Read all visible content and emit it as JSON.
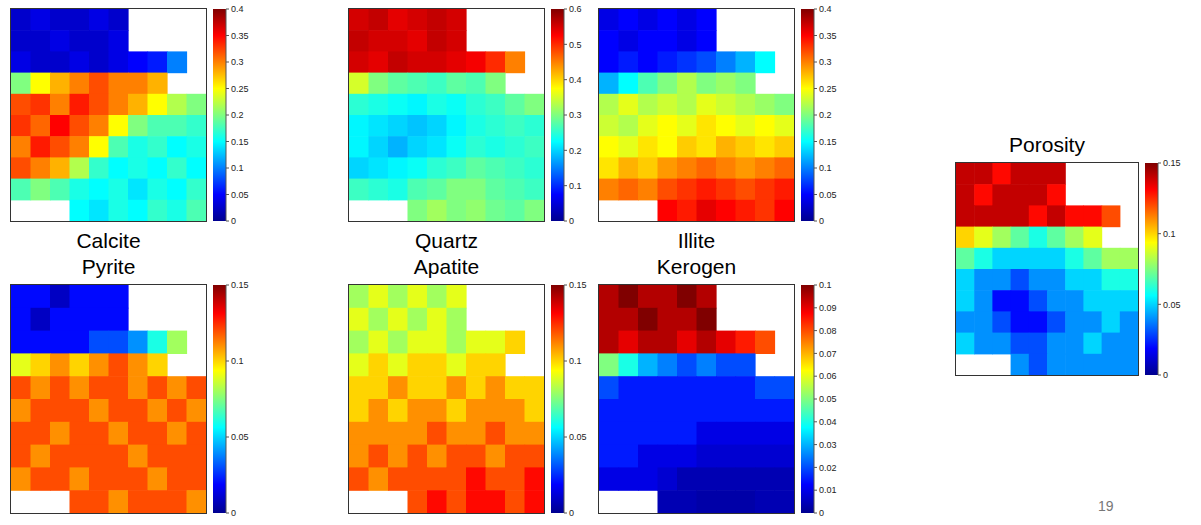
{
  "chart_data": [
    {
      "type": "heatmap",
      "title": "Calcite",
      "tick_labels": false,
      "colorbar_range": [
        0,
        0.4
      ],
      "colorbar_ticks": [
        0,
        0.05,
        0.1,
        0.15,
        0.2,
        0.25,
        0.3,
        0.35,
        0.4
      ],
      "cells": [
        [
          0.03,
          0.04,
          0.03,
          0.03,
          0.04,
          0.03,
          null,
          null,
          null,
          null
        ],
        [
          0.03,
          0.03,
          0.04,
          0.03,
          0.03,
          0.04,
          null,
          null,
          null,
          null
        ],
        [
          0.04,
          0.03,
          0.03,
          0.04,
          0.03,
          0.04,
          0.05,
          0.06,
          0.1,
          null
        ],
        [
          0.2,
          0.25,
          0.28,
          0.3,
          0.32,
          0.3,
          0.3,
          0.28,
          null,
          null
        ],
        [
          0.32,
          0.33,
          0.3,
          0.34,
          0.32,
          0.3,
          0.28,
          0.25,
          0.22,
          0.2
        ],
        [
          0.33,
          0.31,
          0.35,
          0.32,
          0.3,
          0.25,
          0.2,
          0.18,
          0.18,
          0.17
        ],
        [
          0.3,
          0.34,
          0.32,
          0.3,
          0.25,
          0.18,
          0.16,
          0.17,
          0.15,
          0.16
        ],
        [
          0.32,
          0.3,
          0.28,
          0.22,
          0.17,
          0.15,
          0.16,
          0.15,
          0.17,
          0.15
        ],
        [
          0.18,
          0.2,
          0.18,
          0.16,
          0.15,
          0.16,
          0.14,
          0.16,
          0.15,
          0.17
        ],
        [
          null,
          null,
          null,
          0.15,
          0.14,
          0.16,
          0.15,
          0.17,
          0.16,
          0.18
        ]
      ]
    },
    {
      "type": "heatmap",
      "title": "Quartz",
      "tick_labels": false,
      "colorbar_range": [
        0,
        0.6
      ],
      "colorbar_ticks": [
        0,
        0.1,
        0.2,
        0.3,
        0.4,
        0.5,
        0.6
      ],
      "cells": [
        [
          0.55,
          0.56,
          0.54,
          0.55,
          0.56,
          0.55,
          null,
          null,
          null,
          null
        ],
        [
          0.56,
          0.55,
          0.55,
          0.54,
          0.56,
          0.55,
          null,
          null,
          null,
          null
        ],
        [
          0.55,
          0.54,
          0.56,
          0.55,
          0.55,
          0.54,
          0.53,
          0.5,
          0.45,
          null
        ],
        [
          0.35,
          0.3,
          0.28,
          0.27,
          0.26,
          0.28,
          0.27,
          0.3,
          null,
          null
        ],
        [
          0.25,
          0.24,
          0.23,
          0.22,
          0.24,
          0.23,
          0.25,
          0.26,
          0.28,
          0.3
        ],
        [
          0.22,
          0.21,
          0.2,
          0.19,
          0.2,
          0.22,
          0.24,
          0.25,
          0.26,
          0.25
        ],
        [
          0.22,
          0.2,
          0.18,
          0.2,
          0.21,
          0.23,
          0.25,
          0.24,
          0.25,
          0.26
        ],
        [
          0.2,
          0.21,
          0.22,
          0.23,
          0.25,
          0.26,
          0.28,
          0.27,
          0.26,
          0.25
        ],
        [
          0.26,
          0.25,
          0.24,
          0.27,
          0.28,
          0.3,
          0.3,
          0.28,
          0.27,
          0.26
        ],
        [
          null,
          null,
          null,
          0.3,
          0.32,
          0.3,
          0.31,
          0.29,
          0.28,
          0.3
        ]
      ]
    },
    {
      "type": "heatmap",
      "title": "Illite",
      "tick_labels": false,
      "colorbar_range": [
        0,
        0.4
      ],
      "colorbar_ticks": [
        0,
        0.05,
        0.1,
        0.15,
        0.2,
        0.25,
        0.3,
        0.35,
        0.4
      ],
      "cells": [
        [
          0.04,
          0.05,
          0.04,
          0.05,
          0.04,
          0.05,
          null,
          null,
          null,
          null
        ],
        [
          0.05,
          0.04,
          0.05,
          0.05,
          0.04,
          0.05,
          null,
          null,
          null,
          null
        ],
        [
          0.05,
          0.06,
          0.05,
          0.06,
          0.07,
          0.08,
          0.1,
          0.12,
          0.15,
          null
        ],
        [
          0.12,
          0.15,
          0.18,
          0.2,
          0.22,
          0.2,
          0.21,
          0.2,
          null,
          null
        ],
        [
          0.22,
          0.24,
          0.22,
          0.23,
          0.22,
          0.24,
          0.23,
          0.22,
          0.21,
          0.2
        ],
        [
          0.23,
          0.22,
          0.24,
          0.25,
          0.24,
          0.26,
          0.25,
          0.24,
          0.25,
          0.24
        ],
        [
          0.25,
          0.24,
          0.26,
          0.25,
          0.27,
          0.26,
          0.28,
          0.27,
          0.26,
          0.27
        ],
        [
          0.26,
          0.28,
          0.27,
          0.29,
          0.3,
          0.31,
          0.3,
          0.29,
          0.3,
          0.31
        ],
        [
          0.3,
          0.31,
          0.3,
          0.32,
          0.33,
          0.34,
          0.33,
          0.32,
          0.33,
          0.34
        ],
        [
          null,
          null,
          null,
          0.35,
          0.34,
          0.36,
          0.35,
          0.34,
          0.33,
          0.35
        ]
      ]
    },
    {
      "type": "heatmap",
      "title": "Pyrite",
      "tick_labels": false,
      "colorbar_range": [
        0,
        0.15
      ],
      "colorbar_ticks": [
        0,
        0.05,
        0.1,
        0.15
      ],
      "cells": [
        [
          0.02,
          0.02,
          0.01,
          0.02,
          0.02,
          0.02,
          null,
          null,
          null,
          null
        ],
        [
          0.02,
          0.01,
          0.02,
          0.02,
          0.02,
          0.02,
          null,
          null,
          null,
          null
        ],
        [
          0.02,
          0.02,
          0.02,
          0.02,
          0.03,
          0.03,
          0.04,
          0.06,
          0.08,
          null
        ],
        [
          0.09,
          0.1,
          0.11,
          0.1,
          0.11,
          0.12,
          0.11,
          0.1,
          null,
          null
        ],
        [
          0.12,
          0.11,
          0.12,
          0.11,
          0.12,
          0.12,
          0.11,
          0.12,
          0.11,
          0.12
        ],
        [
          0.11,
          0.12,
          0.12,
          0.12,
          0.11,
          0.12,
          0.12,
          0.11,
          0.12,
          0.11
        ],
        [
          0.12,
          0.12,
          0.11,
          0.12,
          0.12,
          0.11,
          0.12,
          0.12,
          0.11,
          0.12
        ],
        [
          0.12,
          0.11,
          0.12,
          0.12,
          0.12,
          0.12,
          0.11,
          0.12,
          0.12,
          0.12
        ],
        [
          0.11,
          0.12,
          0.12,
          0.11,
          0.12,
          0.12,
          0.12,
          0.11,
          0.12,
          0.12
        ],
        [
          null,
          null,
          null,
          0.12,
          0.12,
          0.11,
          0.12,
          0.12,
          0.12,
          0.11
        ]
      ]
    },
    {
      "type": "heatmap",
      "title": "Apatite",
      "tick_labels": false,
      "colorbar_range": [
        0,
        0.15
      ],
      "colorbar_ticks": [
        0,
        0.05,
        0.1,
        0.15
      ],
      "cells": [
        [
          0.08,
          0.09,
          0.08,
          0.09,
          0.08,
          0.09,
          null,
          null,
          null,
          null
        ],
        [
          0.09,
          0.08,
          0.09,
          0.08,
          0.09,
          0.08,
          null,
          null,
          null,
          null
        ],
        [
          0.08,
          0.09,
          0.08,
          0.09,
          0.09,
          0.08,
          0.09,
          0.09,
          0.1,
          null
        ],
        [
          0.09,
          0.1,
          0.09,
          0.1,
          0.1,
          0.09,
          0.1,
          0.1,
          null,
          null
        ],
        [
          0.1,
          0.1,
          0.11,
          0.1,
          0.1,
          0.11,
          0.1,
          0.11,
          0.1,
          0.1
        ],
        [
          0.1,
          0.11,
          0.1,
          0.11,
          0.11,
          0.1,
          0.11,
          0.11,
          0.11,
          0.1
        ],
        [
          0.11,
          0.11,
          0.11,
          0.11,
          0.12,
          0.11,
          0.11,
          0.12,
          0.11,
          0.11
        ],
        [
          0.11,
          0.12,
          0.11,
          0.12,
          0.11,
          0.12,
          0.12,
          0.11,
          0.12,
          0.12
        ],
        [
          0.12,
          0.11,
          0.12,
          0.12,
          0.12,
          0.12,
          0.13,
          0.12,
          0.12,
          0.13
        ],
        [
          null,
          null,
          null,
          0.12,
          0.13,
          0.12,
          0.13,
          0.13,
          0.12,
          0.13
        ]
      ]
    },
    {
      "type": "heatmap",
      "title": "Kerogen",
      "tick_labels": false,
      "colorbar_range": [
        0,
        0.1
      ],
      "colorbar_ticks": [
        0,
        0.01,
        0.02,
        0.03,
        0.04,
        0.05,
        0.06,
        0.07,
        0.08,
        0.09,
        0.1
      ],
      "cells": [
        [
          0.095,
          0.1,
          0.095,
          0.095,
          0.1,
          0.095,
          null,
          null,
          null,
          null
        ],
        [
          0.095,
          0.095,
          0.1,
          0.095,
          0.095,
          0.1,
          null,
          null,
          null,
          null
        ],
        [
          0.095,
          0.09,
          0.095,
          0.095,
          0.09,
          0.095,
          0.09,
          0.085,
          0.08,
          null
        ],
        [
          0.05,
          0.04,
          0.03,
          0.025,
          0.02,
          0.025,
          0.02,
          0.02,
          null,
          null
        ],
        [
          0.02,
          0.015,
          0.015,
          0.015,
          0.015,
          0.015,
          0.015,
          0.015,
          0.02,
          0.02
        ],
        [
          0.015,
          0.015,
          0.015,
          0.015,
          0.015,
          0.015,
          0.015,
          0.015,
          0.015,
          0.015
        ],
        [
          0.015,
          0.015,
          0.015,
          0.015,
          0.015,
          0.01,
          0.01,
          0.01,
          0.01,
          0.01
        ],
        [
          0.015,
          0.015,
          0.01,
          0.01,
          0.01,
          0.008,
          0.008,
          0.008,
          0.008,
          0.008
        ],
        [
          0.01,
          0.01,
          0.01,
          0.008,
          0.005,
          0.005,
          0.005,
          0.005,
          0.005,
          0.005
        ],
        [
          null,
          null,
          null,
          0.005,
          0.005,
          0.004,
          0.004,
          0.004,
          0.005,
          0.005
        ]
      ]
    },
    {
      "type": "heatmap",
      "title": "Porosity",
      "tick_labels": false,
      "colorbar_range": [
        0,
        0.15
      ],
      "colorbar_ticks": [
        0,
        0.05,
        0.1,
        0.15
      ],
      "cells": [
        [
          0.14,
          0.14,
          0.13,
          0.14,
          0.14,
          0.14,
          null,
          null,
          null,
          null
        ],
        [
          0.14,
          0.13,
          0.14,
          0.14,
          0.14,
          0.13,
          null,
          null,
          null,
          null
        ],
        [
          0.14,
          0.14,
          0.14,
          0.14,
          0.13,
          0.14,
          0.13,
          0.13,
          0.12,
          null
        ],
        [
          0.1,
          0.09,
          0.08,
          0.07,
          0.06,
          0.07,
          0.08,
          0.09,
          null,
          null
        ],
        [
          0.07,
          0.06,
          0.05,
          0.05,
          0.05,
          0.05,
          0.06,
          0.07,
          0.08,
          0.08
        ],
        [
          0.05,
          0.04,
          0.04,
          0.03,
          0.04,
          0.04,
          0.05,
          0.05,
          0.06,
          0.06
        ],
        [
          0.05,
          0.04,
          0.02,
          0.02,
          0.03,
          0.04,
          0.04,
          0.05,
          0.05,
          0.05
        ],
        [
          0.04,
          0.04,
          0.03,
          0.02,
          0.02,
          0.03,
          0.04,
          0.04,
          0.05,
          0.04
        ],
        [
          0.05,
          0.04,
          0.04,
          0.03,
          0.03,
          0.04,
          0.04,
          0.05,
          0.04,
          0.04
        ],
        [
          null,
          null,
          null,
          0.04,
          0.03,
          0.04,
          0.04,
          0.04,
          0.04,
          0.04
        ]
      ]
    }
  ],
  "page_number": "19"
}
